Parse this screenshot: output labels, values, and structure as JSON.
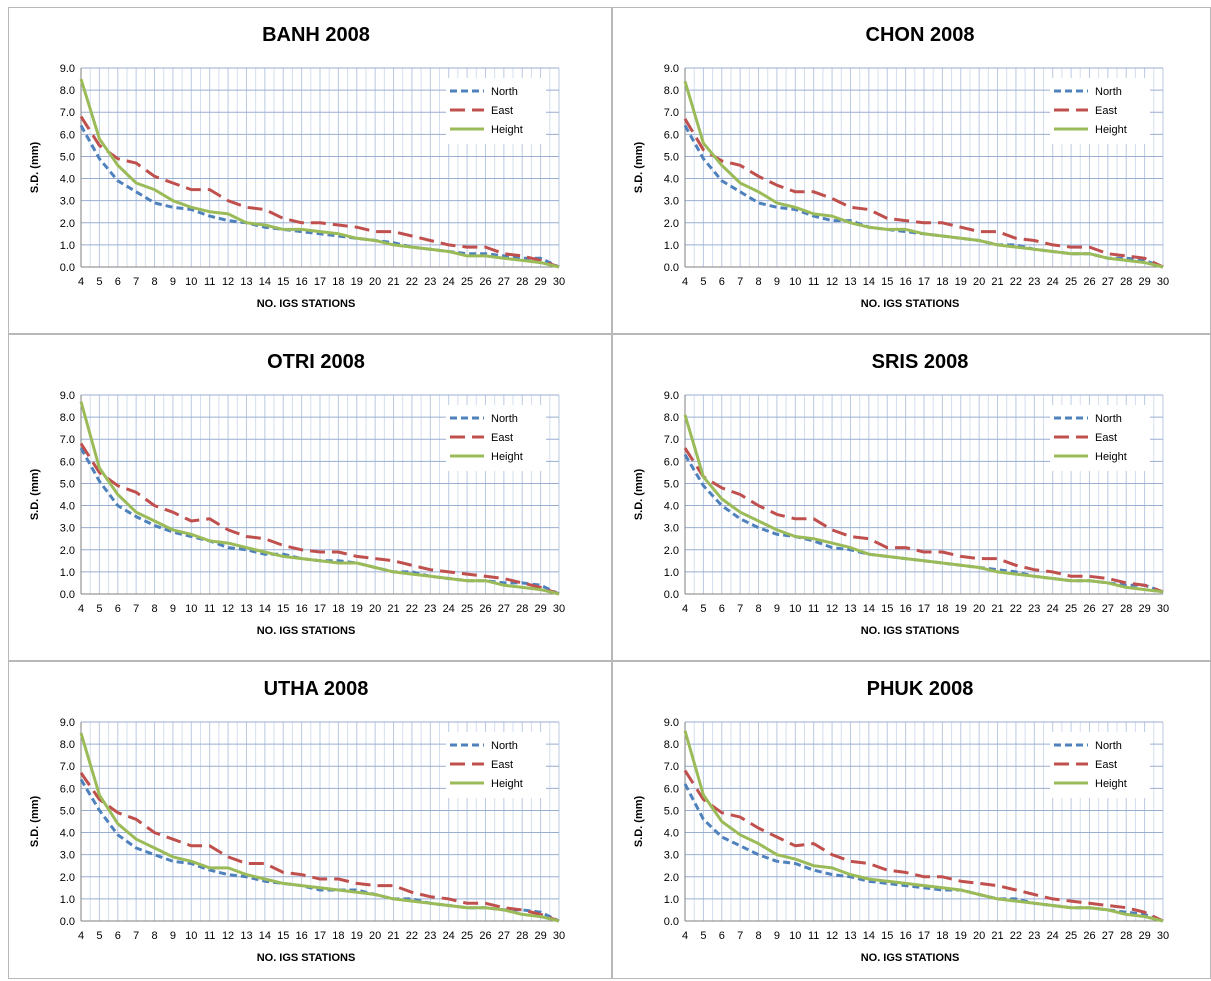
{
  "chart_data": [
    {
      "type": "line",
      "title": "BANH  2008",
      "xlabel": "NO. IGS STATIONS",
      "ylabel": "S.D. (mm)",
      "ylim": [
        0,
        9
      ],
      "yticks": [
        "0.0",
        "1.0",
        "2.0",
        "3.0",
        "4.0",
        "5.0",
        "6.0",
        "7.0",
        "8.0",
        "9.0"
      ],
      "x": [
        4,
        5,
        6,
        7,
        8,
        9,
        10,
        11,
        12,
        13,
        14,
        15,
        16,
        17,
        18,
        19,
        20,
        21,
        22,
        23,
        24,
        25,
        26,
        27,
        28,
        29,
        30
      ],
      "legend_position": "top-right",
      "grid": true,
      "series": [
        {
          "name": "North",
          "color": "#4f81bd",
          "dash": "dashed",
          "values": [
            6.4,
            4.9,
            3.9,
            3.4,
            2.9,
            2.7,
            2.6,
            2.3,
            2.1,
            2.0,
            1.8,
            1.7,
            1.6,
            1.5,
            1.4,
            1.3,
            1.2,
            1.1,
            0.9,
            0.8,
            0.7,
            0.6,
            0.6,
            0.5,
            0.4,
            0.4,
            0.0
          ]
        },
        {
          "name": "East",
          "color": "#c0504d",
          "dash": "longdash",
          "values": [
            6.8,
            5.5,
            4.9,
            4.7,
            4.1,
            3.8,
            3.5,
            3.5,
            3.0,
            2.7,
            2.6,
            2.2,
            2.0,
            2.0,
            1.9,
            1.8,
            1.6,
            1.6,
            1.4,
            1.2,
            1.0,
            0.9,
            0.9,
            0.6,
            0.5,
            0.3,
            0.0
          ]
        },
        {
          "name": "Height",
          "color": "#9bbb59",
          "dash": "solid",
          "values": [
            8.5,
            5.8,
            4.6,
            3.8,
            3.5,
            3.0,
            2.7,
            2.5,
            2.4,
            2.0,
            1.9,
            1.7,
            1.7,
            1.6,
            1.5,
            1.3,
            1.2,
            1.0,
            0.9,
            0.8,
            0.7,
            0.5,
            0.5,
            0.4,
            0.3,
            0.2,
            0.0
          ]
        }
      ]
    },
    {
      "type": "line",
      "title": "CHON  2008",
      "xlabel": "NO. IGS STATIONS",
      "ylabel": "S.D. (mm)",
      "ylim": [
        0,
        9
      ],
      "yticks": [
        "0.0",
        "1.0",
        "2.0",
        "3.0",
        "4.0",
        "5.0",
        "6.0",
        "7.0",
        "8.0",
        "9.0"
      ],
      "x": [
        4,
        5,
        6,
        7,
        8,
        9,
        10,
        11,
        12,
        13,
        14,
        15,
        16,
        17,
        18,
        19,
        20,
        21,
        22,
        23,
        24,
        25,
        26,
        27,
        28,
        29,
        30
      ],
      "legend_position": "top-right",
      "grid": true,
      "series": [
        {
          "name": "North",
          "color": "#4f81bd",
          "dash": "dashed",
          "values": [
            6.4,
            4.9,
            3.9,
            3.4,
            2.9,
            2.7,
            2.6,
            2.3,
            2.1,
            2.1,
            1.8,
            1.7,
            1.6,
            1.5,
            1.4,
            1.3,
            1.2,
            1.0,
            1.0,
            0.8,
            0.7,
            0.6,
            0.6,
            0.4,
            0.4,
            0.3,
            0.0
          ]
        },
        {
          "name": "East",
          "color": "#c0504d",
          "dash": "longdash",
          "values": [
            6.7,
            5.3,
            4.8,
            4.6,
            4.1,
            3.7,
            3.4,
            3.4,
            3.1,
            2.7,
            2.6,
            2.2,
            2.1,
            2.0,
            2.0,
            1.8,
            1.6,
            1.6,
            1.3,
            1.2,
            1.0,
            0.9,
            0.9,
            0.6,
            0.5,
            0.4,
            0.0
          ]
        },
        {
          "name": "Height",
          "color": "#9bbb59",
          "dash": "solid",
          "values": [
            8.4,
            5.6,
            4.6,
            3.8,
            3.4,
            2.9,
            2.7,
            2.4,
            2.3,
            2.0,
            1.8,
            1.7,
            1.7,
            1.5,
            1.4,
            1.3,
            1.2,
            1.0,
            0.9,
            0.8,
            0.7,
            0.6,
            0.6,
            0.4,
            0.3,
            0.2,
            0.0
          ]
        }
      ]
    },
    {
      "type": "line",
      "title": "OTRI 2008",
      "xlabel": "NO. IGS STATIONS",
      "ylabel": "S.D. (mm)",
      "ylim": [
        0,
        9
      ],
      "yticks": [
        "0.0",
        "1.0",
        "2.0",
        "3.0",
        "4.0",
        "5.0",
        "6.0",
        "7.0",
        "8.0",
        "9.0"
      ],
      "x": [
        4,
        5,
        6,
        7,
        8,
        9,
        10,
        11,
        12,
        13,
        14,
        15,
        16,
        17,
        18,
        19,
        20,
        21,
        22,
        23,
        24,
        25,
        26,
        27,
        28,
        29,
        30
      ],
      "legend_position": "top-right",
      "grid": true,
      "series": [
        {
          "name": "North",
          "color": "#4f81bd",
          "dash": "dashed",
          "values": [
            6.6,
            5.1,
            4.0,
            3.5,
            3.1,
            2.8,
            2.6,
            2.4,
            2.1,
            2.0,
            1.8,
            1.8,
            1.6,
            1.5,
            1.5,
            1.4,
            1.2,
            1.0,
            1.0,
            0.8,
            0.7,
            0.6,
            0.6,
            0.5,
            0.5,
            0.4,
            0.0
          ]
        },
        {
          "name": "East",
          "color": "#c0504d",
          "dash": "longdash",
          "values": [
            6.8,
            5.5,
            4.9,
            4.6,
            4.0,
            3.7,
            3.3,
            3.4,
            2.9,
            2.6,
            2.5,
            2.2,
            2.0,
            1.9,
            1.9,
            1.7,
            1.6,
            1.5,
            1.3,
            1.1,
            1.0,
            0.9,
            0.8,
            0.7,
            0.5,
            0.3,
            0.0
          ]
        },
        {
          "name": "Height",
          "color": "#9bbb59",
          "dash": "solid",
          "values": [
            8.7,
            5.7,
            4.5,
            3.7,
            3.3,
            2.9,
            2.7,
            2.4,
            2.3,
            2.1,
            1.9,
            1.7,
            1.6,
            1.5,
            1.4,
            1.4,
            1.2,
            1.0,
            0.9,
            0.8,
            0.7,
            0.6,
            0.6,
            0.4,
            0.3,
            0.2,
            0.0
          ]
        }
      ]
    },
    {
      "type": "line",
      "title": "SRIS 2008",
      "xlabel": "NO. IGS STATIONS",
      "ylabel": "S.D. (mm)",
      "ylim": [
        0,
        9
      ],
      "yticks": [
        "0.0",
        "1.0",
        "2.0",
        "3.0",
        "4.0",
        "5.0",
        "6.0",
        "7.0",
        "8.0",
        "9.0"
      ],
      "x": [
        4,
        5,
        6,
        7,
        8,
        9,
        10,
        11,
        12,
        13,
        14,
        15,
        16,
        17,
        18,
        19,
        20,
        21,
        22,
        23,
        24,
        25,
        26,
        27,
        28,
        29,
        30
      ],
      "legend_position": "top-right",
      "grid": true,
      "series": [
        {
          "name": "North",
          "color": "#4f81bd",
          "dash": "dashed",
          "values": [
            6.3,
            4.9,
            4.0,
            3.4,
            3.0,
            2.7,
            2.6,
            2.4,
            2.1,
            2.0,
            1.8,
            1.7,
            1.6,
            1.5,
            1.4,
            1.3,
            1.2,
            1.1,
            1.0,
            0.8,
            0.7,
            0.6,
            0.6,
            0.5,
            0.4,
            0.4,
            0.1
          ]
        },
        {
          "name": "East",
          "color": "#c0504d",
          "dash": "longdash",
          "values": [
            6.6,
            5.3,
            4.8,
            4.5,
            4.0,
            3.6,
            3.4,
            3.4,
            2.9,
            2.6,
            2.5,
            2.1,
            2.1,
            1.9,
            1.9,
            1.7,
            1.6,
            1.6,
            1.3,
            1.1,
            1.0,
            0.8,
            0.8,
            0.7,
            0.5,
            0.4,
            0.1
          ]
        },
        {
          "name": "Height",
          "color": "#9bbb59",
          "dash": "solid",
          "values": [
            8.1,
            5.3,
            4.3,
            3.7,
            3.3,
            2.9,
            2.6,
            2.5,
            2.3,
            2.1,
            1.8,
            1.7,
            1.6,
            1.5,
            1.4,
            1.3,
            1.2,
            1.0,
            0.9,
            0.8,
            0.7,
            0.6,
            0.6,
            0.5,
            0.3,
            0.2,
            0.1
          ]
        }
      ]
    },
    {
      "type": "line",
      "title": "UTHA 2008",
      "xlabel": "NO. IGS STATIONS",
      "ylabel": "S.D. (mm)",
      "ylim": [
        0,
        9
      ],
      "yticks": [
        "0.0",
        "1.0",
        "2.0",
        "3.0",
        "4.0",
        "5.0",
        "6.0",
        "7.0",
        "8.0",
        "9.0"
      ],
      "x": [
        4,
        5,
        6,
        7,
        8,
        9,
        10,
        11,
        12,
        13,
        14,
        15,
        16,
        17,
        18,
        19,
        20,
        21,
        22,
        23,
        24,
        25,
        26,
        27,
        28,
        29,
        30
      ],
      "legend_position": "top-right",
      "grid": true,
      "series": [
        {
          "name": "North",
          "color": "#4f81bd",
          "dash": "dashed",
          "values": [
            6.4,
            5.0,
            3.9,
            3.3,
            3.0,
            2.7,
            2.6,
            2.3,
            2.1,
            2.0,
            1.8,
            1.7,
            1.6,
            1.4,
            1.4,
            1.4,
            1.2,
            1.0,
            1.0,
            0.8,
            0.7,
            0.6,
            0.6,
            0.5,
            0.5,
            0.4,
            0.0
          ]
        },
        {
          "name": "East",
          "color": "#c0504d",
          "dash": "longdash",
          "values": [
            6.7,
            5.5,
            4.9,
            4.6,
            4.0,
            3.7,
            3.4,
            3.4,
            2.9,
            2.6,
            2.6,
            2.2,
            2.1,
            1.9,
            1.9,
            1.7,
            1.6,
            1.6,
            1.3,
            1.1,
            1.0,
            0.8,
            0.8,
            0.6,
            0.5,
            0.3,
            0.0
          ]
        },
        {
          "name": "Height",
          "color": "#9bbb59",
          "dash": "solid",
          "values": [
            8.5,
            5.7,
            4.4,
            3.7,
            3.3,
            2.9,
            2.7,
            2.4,
            2.4,
            2.1,
            1.9,
            1.7,
            1.6,
            1.5,
            1.4,
            1.3,
            1.2,
            1.0,
            0.9,
            0.8,
            0.7,
            0.6,
            0.6,
            0.5,
            0.3,
            0.2,
            0.0
          ]
        }
      ]
    },
    {
      "type": "line",
      "title": "PHUK 2008",
      "xlabel": "NO. IGS STATIONS",
      "ylabel": "S.D. (mm)",
      "ylim": [
        0,
        9
      ],
      "yticks": [
        "0.0",
        "1.0",
        "2.0",
        "3.0",
        "4.0",
        "5.0",
        "6.0",
        "7.0",
        "8.0",
        "9.0"
      ],
      "x": [
        4,
        5,
        6,
        7,
        8,
        9,
        10,
        11,
        12,
        13,
        14,
        15,
        16,
        17,
        18,
        19,
        20,
        21,
        22,
        23,
        24,
        25,
        26,
        27,
        28,
        29,
        30
      ],
      "legend_position": "top-right",
      "grid": true,
      "series": [
        {
          "name": "North",
          "color": "#4f81bd",
          "dash": "dashed",
          "values": [
            6.2,
            4.6,
            3.8,
            3.4,
            3.0,
            2.7,
            2.6,
            2.3,
            2.1,
            2.0,
            1.8,
            1.7,
            1.6,
            1.5,
            1.4,
            1.4,
            1.2,
            1.0,
            1.0,
            0.8,
            0.7,
            0.6,
            0.6,
            0.5,
            0.4,
            0.3,
            0.0
          ]
        },
        {
          "name": "East",
          "color": "#c0504d",
          "dash": "longdash",
          "values": [
            6.8,
            5.5,
            4.9,
            4.7,
            4.2,
            3.8,
            3.4,
            3.5,
            3.0,
            2.7,
            2.6,
            2.3,
            2.2,
            2.0,
            2.0,
            1.8,
            1.7,
            1.6,
            1.4,
            1.2,
            1.0,
            0.9,
            0.8,
            0.7,
            0.6,
            0.4,
            0.0
          ]
        },
        {
          "name": "Height",
          "color": "#9bbb59",
          "dash": "solid",
          "values": [
            8.6,
            5.7,
            4.5,
            3.9,
            3.5,
            3.0,
            2.8,
            2.5,
            2.4,
            2.1,
            1.9,
            1.8,
            1.7,
            1.6,
            1.5,
            1.4,
            1.2,
            1.0,
            0.9,
            0.8,
            0.7,
            0.6,
            0.6,
            0.5,
            0.3,
            0.2,
            0.0
          ]
        }
      ]
    }
  ]
}
